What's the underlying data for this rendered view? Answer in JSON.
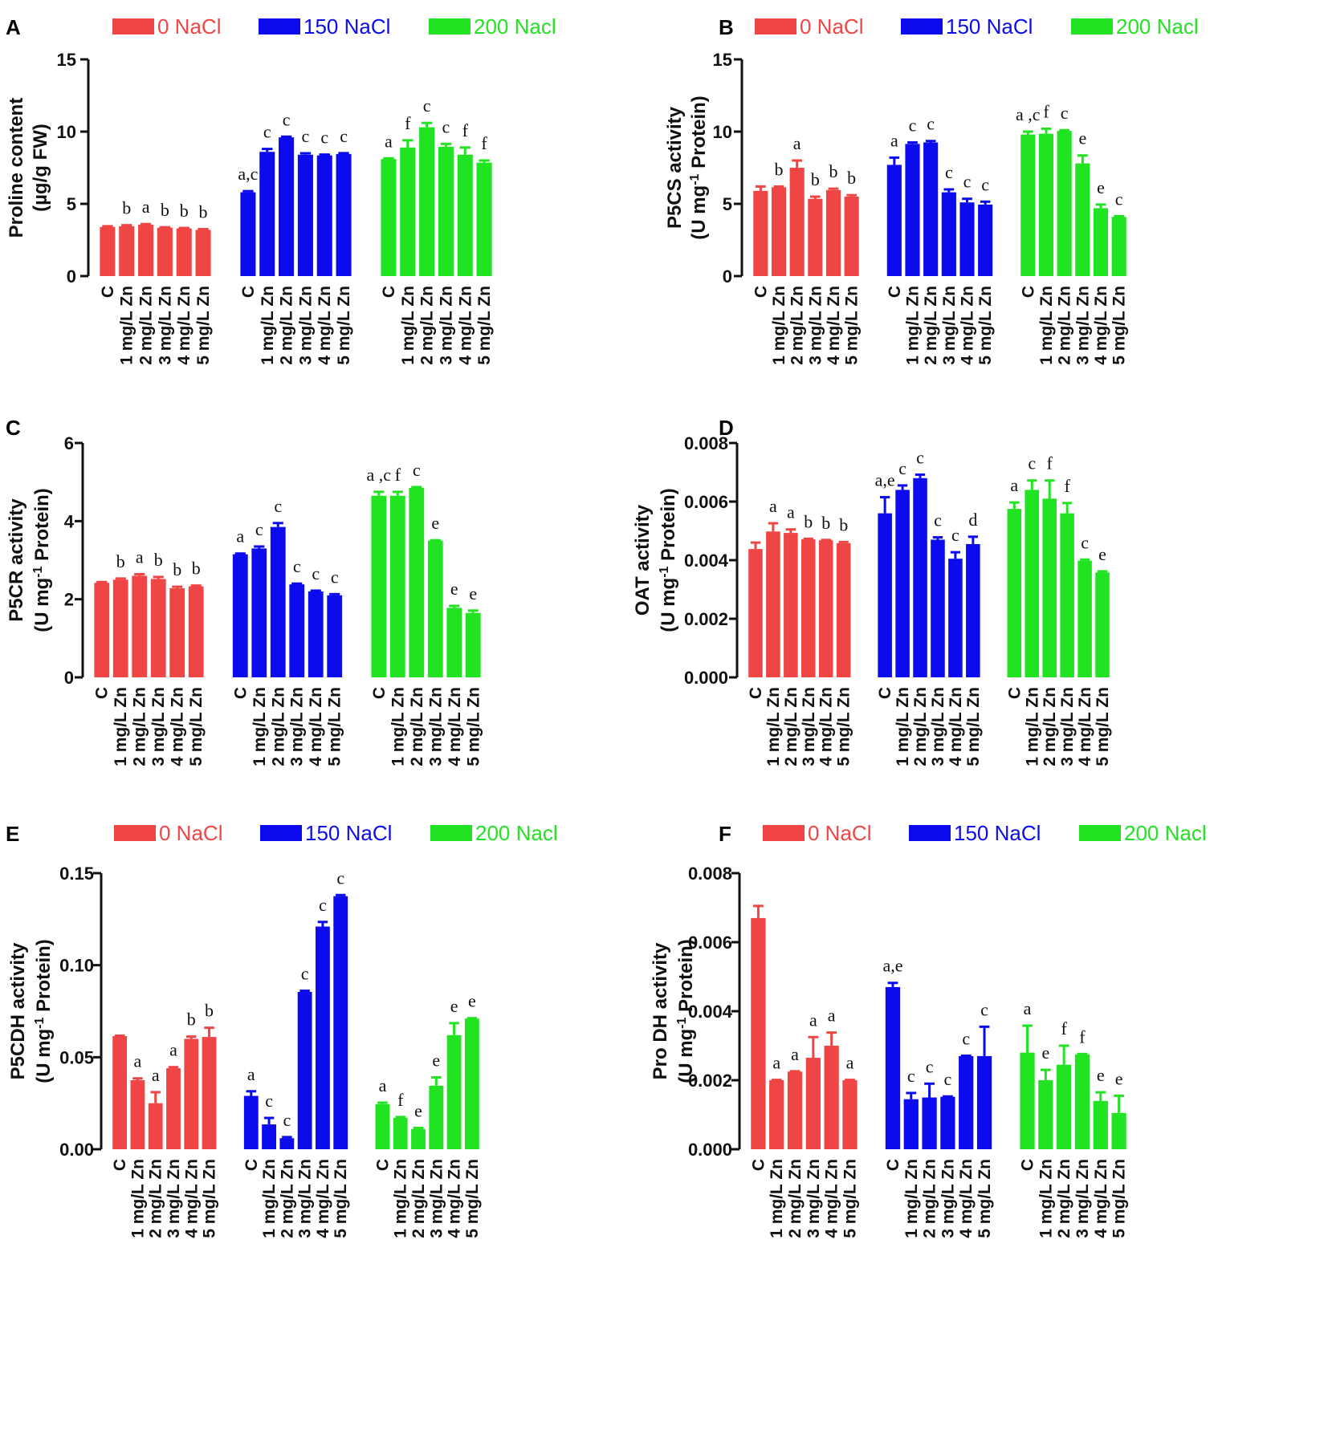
{
  "legend": {
    "entries": [
      "0 NaCl",
      "150 NaCl",
      "200 Nacl"
    ],
    "colors": [
      "#f04545",
      "#0b0bee",
      "#22e322"
    ]
  },
  "categories": [
    "C",
    "1 mg/L Zn",
    "2 mg/L Zn",
    "3 mg/L Zn",
    "4 mg/L Zn",
    "5 mg/L Zn"
  ],
  "chart_data": [
    {
      "type": "bar",
      "panel": "A",
      "ylabel": [
        "Proline content",
        "(µg/g FW)"
      ],
      "ylim": [
        0,
        15
      ],
      "yticks": [
        "0",
        "5",
        "10",
        "15"
      ],
      "yticks_values": [
        0,
        5,
        10,
        15
      ],
      "has_legend": true,
      "series": [
        {
          "name": "0 NaCl",
          "values": [
            3.4,
            3.45,
            3.55,
            3.35,
            3.3,
            3.2
          ],
          "errors": [
            0.05,
            0.07,
            0.05,
            0.03,
            0.03,
            0.05
          ],
          "labels": [
            "",
            "b",
            "a",
            "b",
            "b",
            "b"
          ]
        },
        {
          "name": "150 NaCl",
          "values": [
            5.8,
            8.6,
            9.6,
            8.4,
            8.35,
            8.45
          ],
          "errors": [
            0.08,
            0.2,
            0.05,
            0.1,
            0.06,
            0.06
          ],
          "labels": [
            "a,c",
            "c",
            "c",
            "c",
            "c",
            "c"
          ]
        },
        {
          "name": "200 Nacl",
          "values": [
            8.1,
            8.9,
            10.3,
            8.95,
            8.4,
            7.85
          ],
          "errors": [
            0.05,
            0.5,
            0.3,
            0.2,
            0.5,
            0.15
          ],
          "labels": [
            "a",
            "f",
            "c",
            "c",
            "f",
            "f"
          ]
        }
      ]
    },
    {
      "type": "bar",
      "panel": "B",
      "ylabel": [
        "P5CS activity",
        "(U mg<sup>-1</sup> Protein)"
      ],
      "ylim": [
        0,
        15
      ],
      "yticks": [
        "0",
        "5",
        "10",
        "15"
      ],
      "yticks_values": [
        0,
        5,
        10,
        15
      ],
      "has_legend": true,
      "series": [
        {
          "name": "0 NaCl",
          "values": [
            5.9,
            6.15,
            7.5,
            5.35,
            5.95,
            5.5
          ],
          "errors": [
            0.3,
            0.05,
            0.5,
            0.15,
            0.1,
            0.1
          ],
          "labels": [
            "",
            "b",
            "a",
            "b",
            "b",
            "b"
          ]
        },
        {
          "name": "150 NaCl",
          "values": [
            7.7,
            9.15,
            9.25,
            5.8,
            5.1,
            4.95
          ],
          "errors": [
            0.5,
            0.1,
            0.1,
            0.2,
            0.25,
            0.2
          ],
          "labels": [
            "a",
            "c",
            "c",
            "c",
            "c",
            "c"
          ]
        },
        {
          "name": "200 Nacl",
          "values": [
            9.8,
            9.85,
            10.05,
            7.8,
            4.7,
            4.1
          ],
          "errors": [
            0.2,
            0.35,
            0.05,
            0.55,
            0.25,
            0.05
          ],
          "labels": [
            "a ,c",
            "f",
            "c",
            "e",
            "e",
            "c"
          ]
        }
      ]
    },
    {
      "type": "bar",
      "panel": "C",
      "ylabel": [
        "P5CR activity",
        "(U mg<sup>-1</sup> Protein)"
      ],
      "ylim": [
        0,
        6
      ],
      "yticks": [
        "0",
        "2",
        "4",
        "6"
      ],
      "yticks_values": [
        0,
        2,
        4,
        6
      ],
      "has_legend": false,
      "series": [
        {
          "name": "0 NaCl",
          "values": [
            2.42,
            2.5,
            2.6,
            2.52,
            2.28,
            2.33
          ],
          "errors": [
            0.02,
            0.03,
            0.04,
            0.05,
            0.04,
            0.02
          ],
          "labels": [
            "",
            "b",
            "a",
            "b",
            "b",
            "b"
          ]
        },
        {
          "name": "150 NaCl",
          "values": [
            3.15,
            3.3,
            3.85,
            2.38,
            2.2,
            2.1
          ],
          "errors": [
            0.02,
            0.05,
            0.1,
            0.02,
            0.02,
            0.03
          ],
          "labels": [
            "a",
            "c",
            "c",
            "c",
            "c",
            "c"
          ]
        },
        {
          "name": "200 Nacl",
          "values": [
            4.65,
            4.65,
            4.85,
            3.5,
            1.78,
            1.65
          ],
          "errors": [
            0.1,
            0.1,
            0.02,
            0.01,
            0.05,
            0.06
          ],
          "labels": [
            "a ,c",
            "f",
            "c",
            "e",
            "e",
            "e"
          ]
        }
      ]
    },
    {
      "type": "bar",
      "panel": "D",
      "ylabel": [
        "OAT activity",
        "(U mg<sup>-1</sup> Protein)"
      ],
      "ylim": [
        0,
        0.008
      ],
      "yticks": [
        "0.000",
        "0.002",
        "0.004",
        "0.006",
        "0.008"
      ],
      "yticks_values": [
        0,
        0.002,
        0.004,
        0.006,
        0.008
      ],
      "has_legend": false,
      "series": [
        {
          "name": "0 NaCl",
          "values": [
            0.00438,
            0.00498,
            0.00493,
            0.00471,
            0.00468,
            0.00458
          ],
          "errors": [
            0.00022,
            0.00028,
            0.00012,
            2e-05,
            1e-05,
            4e-05
          ],
          "labels": [
            "",
            "a",
            "a",
            "b",
            "b",
            "b"
          ]
        },
        {
          "name": "150 NaCl",
          "values": [
            0.0056,
            0.0064,
            0.0068,
            0.0047,
            0.00405,
            0.00455
          ],
          "errors": [
            0.00055,
            0.00015,
            0.00012,
            8e-05,
            0.00022,
            0.00025
          ],
          "labels": [
            "a,e",
            "c",
            "c",
            "c",
            "c",
            "d"
          ]
        },
        {
          "name": "200 Nacl",
          "values": [
            0.00575,
            0.0064,
            0.0061,
            0.0056,
            0.00398,
            0.00358
          ],
          "errors": [
            0.00022,
            0.00032,
            0.00062,
            0.00035,
            4e-05,
            4e-05
          ],
          "labels": [
            "a",
            "c",
            "f",
            "f",
            "c",
            "e"
          ]
        }
      ]
    },
    {
      "type": "bar",
      "panel": "E",
      "ylabel": [
        "P5CDH activity",
        "(U mg<sup>-1</sup> Protein)"
      ],
      "ylim": [
        0,
        0.15
      ],
      "yticks": [
        "0.00",
        "0.05",
        "0.10",
        "0.15"
      ],
      "yticks_values": [
        0,
        0.05,
        0.1,
        0.15
      ],
      "has_legend": true,
      "series": [
        {
          "name": "0 NaCl",
          "values": [
            0.0615,
            0.0375,
            0.025,
            0.044,
            0.06,
            0.061
          ],
          "errors": [
            0.0002,
            0.001,
            0.006,
            0.0006,
            0.0012,
            0.005
          ],
          "labels": [
            "",
            "a",
            "a",
            "a",
            "b",
            "b"
          ]
        },
        {
          "name": "150 NaCl",
          "values": [
            0.029,
            0.0135,
            0.006,
            0.0855,
            0.121,
            0.1375
          ],
          "errors": [
            0.0025,
            0.0035,
            0.0006,
            0.0006,
            0.0025,
            0.0006
          ],
          "labels": [
            "a",
            "c",
            "c",
            "c",
            "c",
            "c"
          ]
        },
        {
          "name": "200 Nacl",
          "values": [
            0.0245,
            0.017,
            0.011,
            0.0345,
            0.062,
            0.071
          ],
          "errors": [
            0.0008,
            0.0005,
            0.0006,
            0.0045,
            0.0065,
            0.0002
          ],
          "labels": [
            "a",
            "f",
            "e",
            "e",
            "e",
            "e"
          ]
        }
      ]
    },
    {
      "type": "bar",
      "panel": "F",
      "ylabel": [
        "Pro DH activity",
        "(U mg<sup>-1</sup> Protein)"
      ],
      "ylim": [
        0,
        0.008
      ],
      "yticks": [
        "0.000",
        "0.002",
        "0.004",
        "0.006",
        "0.008"
      ],
      "yticks_values": [
        0,
        0.002,
        0.004,
        0.006,
        0.008
      ],
      "has_legend": true,
      "series": [
        {
          "name": "0 NaCl",
          "values": [
            0.0067,
            0.002,
            0.00225,
            0.00265,
            0.003,
            0.002
          ],
          "errors": [
            0.00035,
            1e-05,
            1e-05,
            0.0006,
            0.00038,
            1e-05
          ],
          "labels": [
            "",
            "a",
            "a",
            "a",
            "a",
            "a"
          ]
        },
        {
          "name": "150 NaCl",
          "values": [
            0.0047,
            0.00145,
            0.0015,
            0.00152,
            0.0027,
            0.0027
          ],
          "errors": [
            0.00012,
            0.00018,
            0.0004,
            1e-05,
            1e-05,
            0.00085
          ],
          "labels": [
            "a,e",
            "c",
            "c",
            "c",
            "c",
            "c"
          ]
        },
        {
          "name": "200 Nacl",
          "values": [
            0.0028,
            0.002,
            0.00245,
            0.00275,
            0.0014,
            0.00105
          ],
          "errors": [
            0.00078,
            0.0003,
            0.00055,
            1e-05,
            0.00025,
            0.0005
          ],
          "labels": [
            "a",
            "e",
            "f",
            "f",
            "e",
            "e"
          ]
        }
      ]
    }
  ]
}
